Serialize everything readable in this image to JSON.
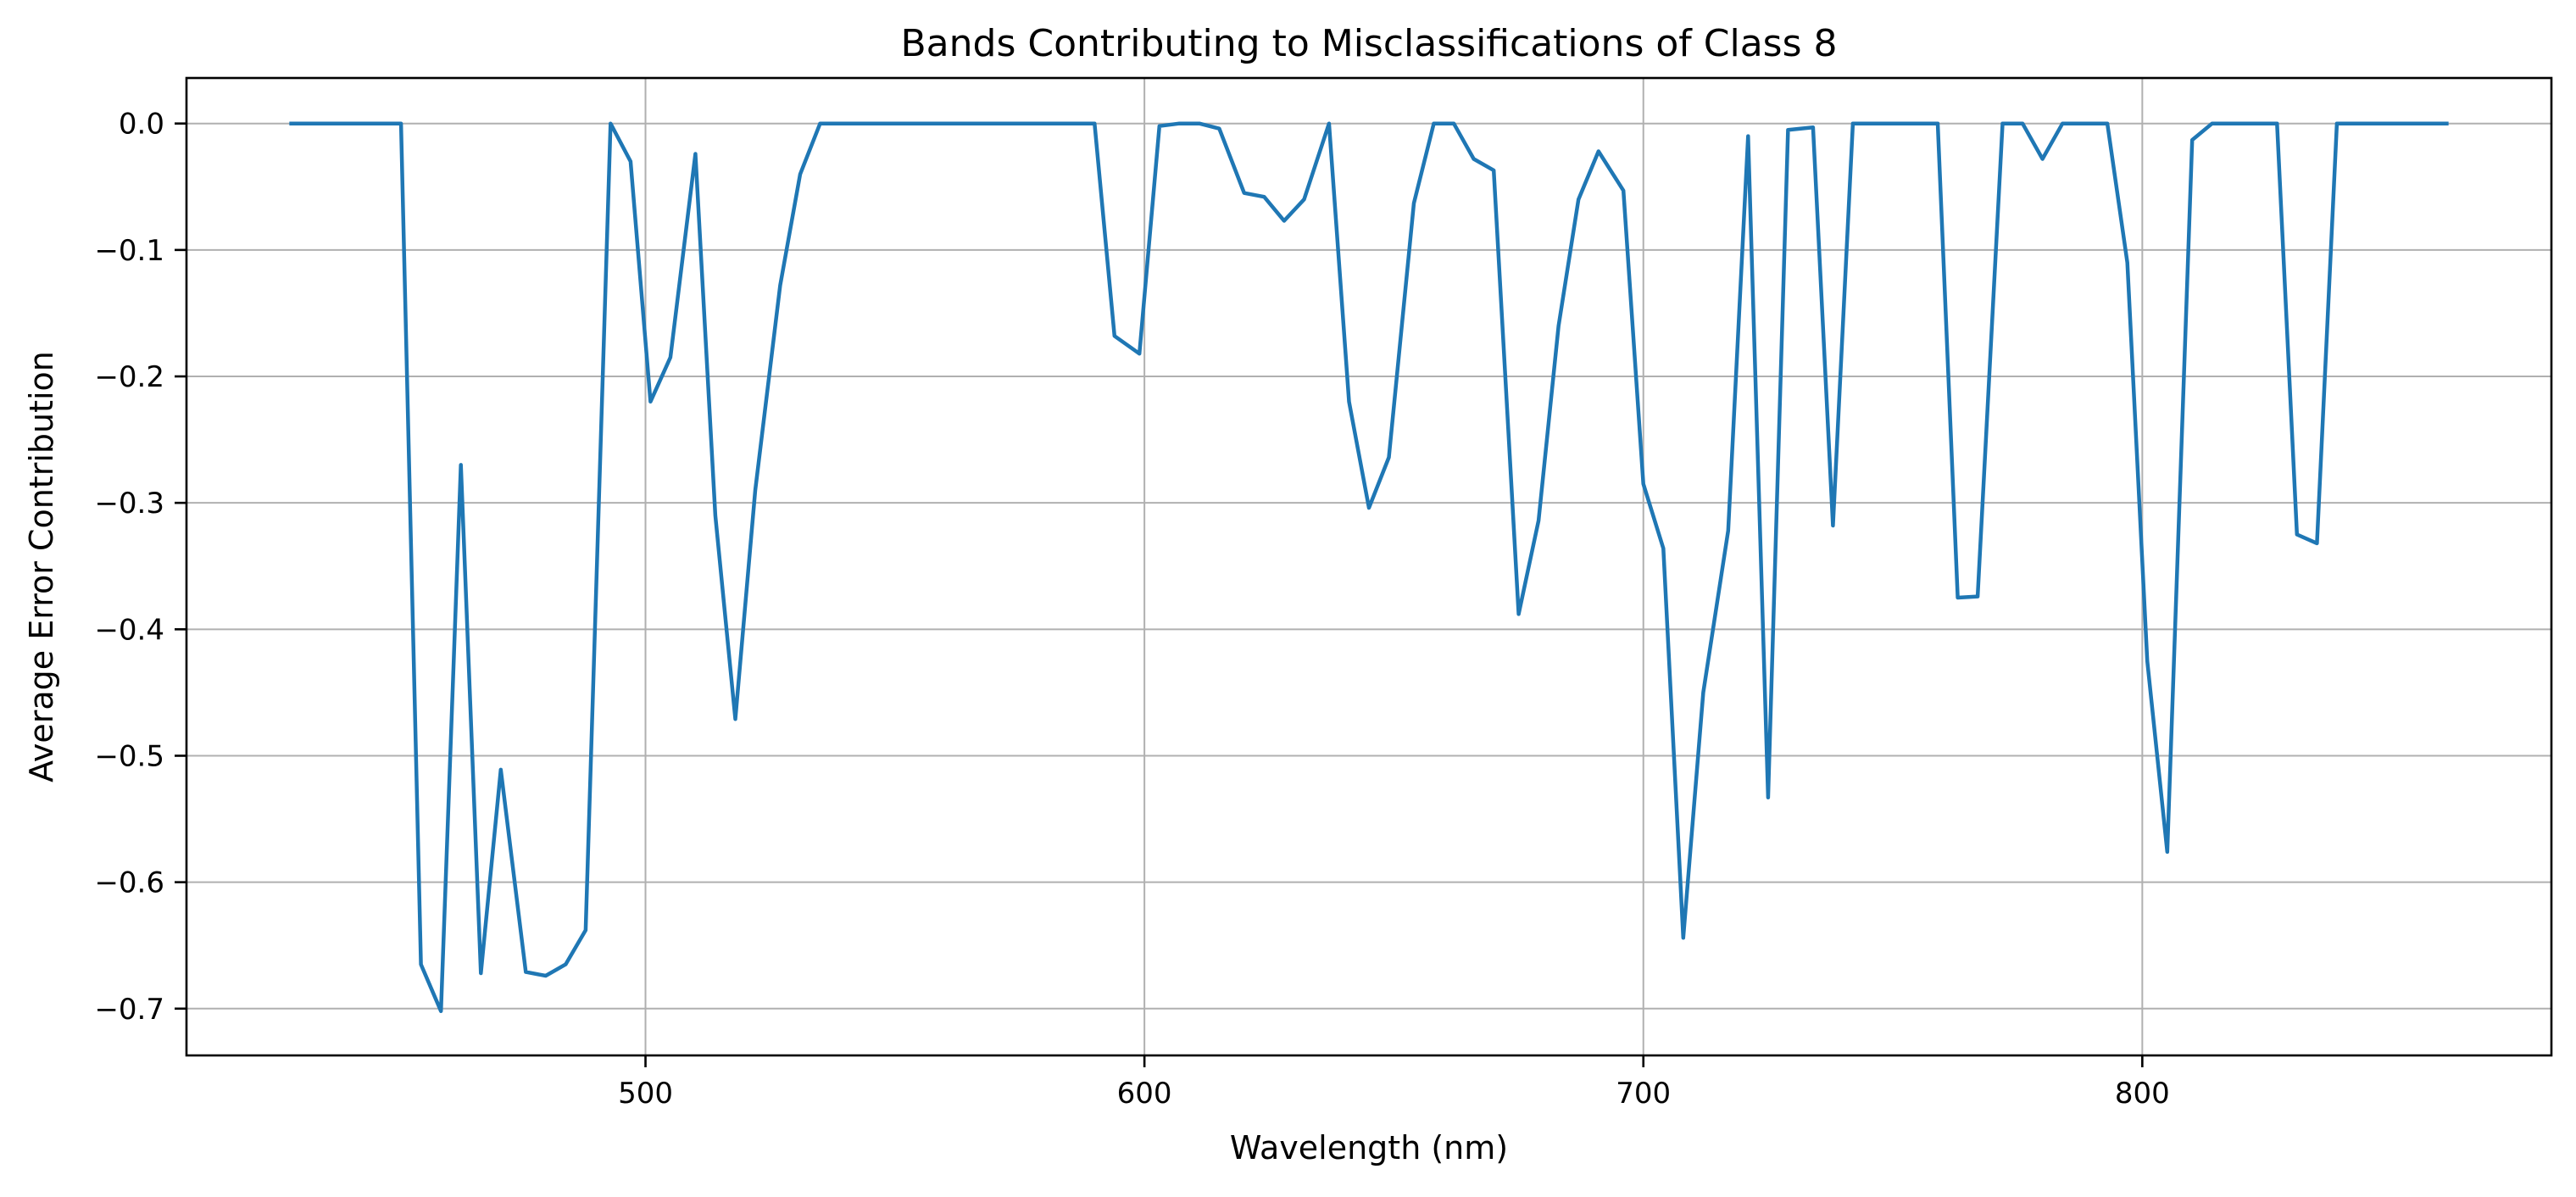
{
  "chart_data": {
    "type": "line",
    "title": "Bands Contributing to Misclassifications of Class 8",
    "xlabel": "Wavelength (nm)",
    "ylabel": "Average Error Contribution",
    "xlim": [
      408,
      882
    ],
    "ylim": [
      -0.737,
      0.036
    ],
    "x_ticks": [
      500,
      600,
      700,
      800
    ],
    "x_tick_labels": [
      "500",
      "600",
      "700",
      "800"
    ],
    "y_ticks": [
      0.0,
      -0.1,
      -0.2,
      -0.3,
      -0.4,
      -0.5,
      -0.6,
      -0.7
    ],
    "y_tick_labels": [
      "0.0",
      "−0.1",
      "−0.2",
      "−0.3",
      "−0.4",
      "−0.5",
      "−0.6",
      "−0.7"
    ],
    "grid": true,
    "series": [
      {
        "color": "#1f77b4",
        "x": [
          429,
          451,
          455,
          459,
          463,
          467,
          471,
          476,
          480,
          484,
          488,
          493,
          497,
          501,
          505,
          510,
          514,
          518,
          522,
          527,
          531,
          535,
          540,
          590,
          594,
          599,
          603,
          607,
          611,
          615,
          620,
          624,
          628,
          632,
          637,
          641,
          645,
          649,
          654,
          658,
          662,
          666,
          670,
          675,
          679,
          683,
          687,
          691,
          696,
          700,
          704,
          708,
          712,
          717,
          721,
          725,
          729,
          734,
          738,
          742,
          759,
          763,
          767,
          772,
          776,
          780,
          784,
          793,
          797,
          801,
          805,
          810,
          814,
          827,
          831,
          835,
          839,
          861
        ],
        "y": [
          0.0,
          0.0,
          -0.665,
          -0.702,
          -0.27,
          -0.672,
          -0.511,
          -0.671,
          -0.674,
          -0.665,
          -0.638,
          0.0,
          -0.03,
          -0.22,
          -0.185,
          -0.024,
          -0.31,
          -0.471,
          -0.29,
          -0.128,
          -0.04,
          0.0,
          0.0,
          0.0,
          -0.168,
          -0.182,
          -0.002,
          0.0,
          0.0,
          -0.004,
          -0.055,
          -0.058,
          -0.077,
          -0.06,
          0.0,
          -0.22,
          -0.304,
          -0.264,
          -0.063,
          0.0,
          0.0,
          -0.028,
          -0.037,
          -0.388,
          -0.314,
          -0.16,
          -0.06,
          -0.022,
          -0.053,
          -0.285,
          -0.336,
          -0.644,
          -0.45,
          -0.322,
          -0.01,
          -0.533,
          -0.005,
          -0.003,
          -0.318,
          0.0,
          0.0,
          -0.375,
          -0.374,
          0.0,
          0.0,
          -0.028,
          0.0,
          0.0,
          -0.11,
          -0.425,
          -0.576,
          -0.013,
          0.0,
          0.0,
          -0.325,
          -0.332,
          0.0,
          0.0
        ]
      }
    ]
  }
}
